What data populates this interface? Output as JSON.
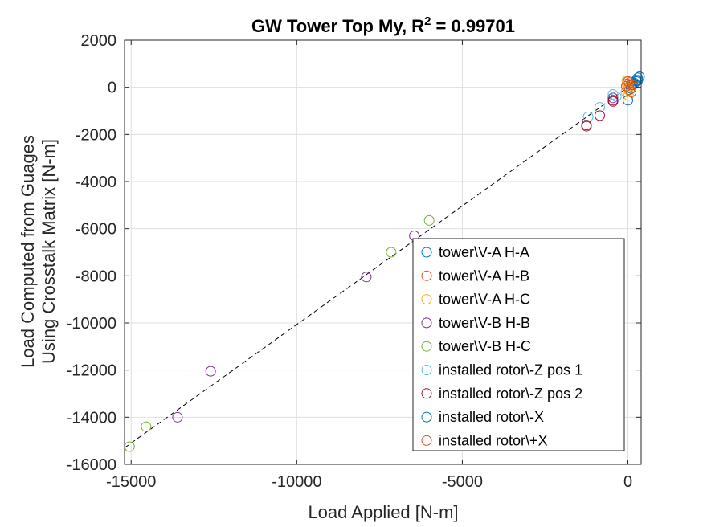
{
  "chart_data": {
    "type": "scatter",
    "title": "GW Tower Top My, R",
    "title_superscript": "2",
    "title_suffix": " = 0.99701",
    "xlabel": "Load Applied [N-m]",
    "ylabel_lines": [
      "Load Computed from Guages",
      "Using Crosstalk Matrix [N-m]"
    ],
    "xlim": [
      -15200,
      400
    ],
    "ylim": [
      -16000,
      2000
    ],
    "xticks": [
      -15000,
      -10000,
      -5000,
      0
    ],
    "xtick_labels": [
      "-15000",
      "-10000",
      "-5000",
      "0"
    ],
    "yticks": [
      2000,
      0,
      -2000,
      -4000,
      -6000,
      -8000,
      -10000,
      -12000,
      -14000,
      -16000
    ],
    "ytick_labels": [
      "2000",
      "0",
      "-2000",
      "-4000",
      "-6000",
      "-8000",
      "-10000",
      "-12000",
      "-14000",
      "-16000"
    ],
    "grid": true,
    "legend_position": "bottom-right",
    "fit_line": {
      "style": "dashed",
      "color": "#000000",
      "x": [
        -15200,
        400
      ],
      "y": [
        -15300,
        400
      ]
    },
    "series": [
      {
        "name": "tower\\V-A H-A",
        "color": "#0072BD",
        "points": [
          [
            150,
            150
          ],
          [
            250,
            250
          ],
          [
            300,
            300
          ],
          [
            120,
            100
          ],
          [
            200,
            180
          ]
        ]
      },
      {
        "name": "tower\\V-A H-B",
        "color": "#D95319",
        "points": [
          [
            0,
            250
          ],
          [
            50,
            200
          ],
          [
            -20,
            150
          ],
          [
            80,
            100
          ],
          [
            30,
            0
          ]
        ]
      },
      {
        "name": "tower\\V-A H-C",
        "color": "#EDB120",
        "points": [
          [
            -30,
            280
          ],
          [
            0,
            -100
          ],
          [
            -60,
            -200
          ],
          [
            20,
            -350
          ],
          [
            -10,
            50
          ]
        ]
      },
      {
        "name": "tower\\V-B H-B",
        "color": "#7E2F8E",
        "points": [
          [
            -12600,
            -12050
          ],
          [
            -13600,
            -14000
          ],
          [
            -7900,
            -8050
          ],
          [
            -6450,
            -6300
          ],
          [
            -450,
            -450
          ]
        ]
      },
      {
        "name": "tower\\V-B H-C",
        "color": "#77AC30",
        "points": [
          [
            -15050,
            -15250
          ],
          [
            -14550,
            -14400
          ],
          [
            -7150,
            -7000
          ],
          [
            -6000,
            -5650
          ]
        ]
      },
      {
        "name": "installed rotor\\-Z pos 1",
        "color": "#4DBEEE",
        "points": [
          [
            -1200,
            -1250
          ],
          [
            -850,
            -850
          ],
          [
            -450,
            -300
          ],
          [
            -350,
            -400
          ]
        ]
      },
      {
        "name": "installed rotor\\-Z pos 2",
        "color": "#A2142F",
        "points": [
          [
            -1250,
            -1600
          ],
          [
            -1250,
            -1650
          ],
          [
            -850,
            -1200
          ],
          [
            -450,
            -550
          ],
          [
            -450,
            -600
          ]
        ]
      },
      {
        "name": "installed rotor\\-X",
        "color": "#0072BD",
        "points": [
          [
            300,
            400
          ],
          [
            350,
            450
          ],
          [
            0,
            -550
          ],
          [
            250,
            300
          ],
          [
            100,
            -50
          ]
        ]
      },
      {
        "name": "installed rotor\\+X",
        "color": "#D95319",
        "points": [
          [
            -50,
            50
          ],
          [
            50,
            -100
          ],
          [
            100,
            -200
          ],
          [
            0,
            250
          ],
          [
            150,
            100
          ]
        ]
      }
    ]
  }
}
